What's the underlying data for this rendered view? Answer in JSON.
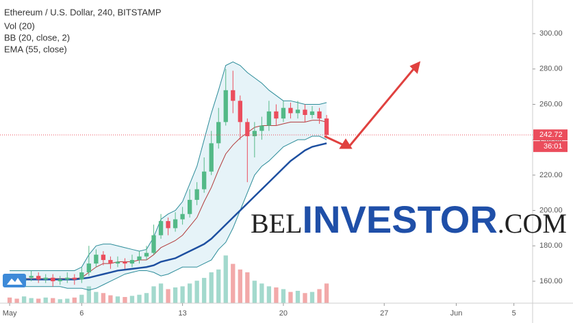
{
  "chart_data": {
    "type": "candlestick",
    "title": "Ethereum / U.S. Dollar, 240, BITSTAMP",
    "indicators": [
      "Vol (20)",
      "BB (20, close, 2)",
      "EMA (55, close)"
    ],
    "x": [
      1,
      1.5,
      2,
      2.5,
      3,
      3.5,
      4,
      4.5,
      5,
      5.5,
      6,
      6.5,
      7,
      7.5,
      8,
      8.5,
      9,
      9.5,
      10,
      10.5,
      11,
      11.5,
      12,
      12.5,
      13,
      13.5,
      14,
      14.5,
      15,
      15.5,
      16,
      16.5,
      17,
      17.5,
      18,
      18.5,
      19,
      19.5,
      20,
      20.5,
      21,
      21.5,
      22,
      22.5,
      23
    ],
    "open": [
      162,
      161,
      160,
      162,
      163,
      161,
      162,
      160,
      161,
      162,
      161,
      165,
      170,
      175,
      172,
      170,
      171,
      170,
      172,
      174,
      176,
      186,
      194,
      190,
      195,
      198,
      206,
      212,
      222,
      238,
      250,
      268,
      262,
      250,
      242,
      245,
      248,
      256,
      252,
      258,
      255,
      257,
      254,
      256,
      252
    ],
    "high": [
      164,
      163,
      164,
      166,
      165,
      164,
      164,
      163,
      165,
      164,
      168,
      180,
      178,
      177,
      174,
      174,
      173,
      175,
      177,
      180,
      192,
      198,
      196,
      199,
      202,
      212,
      216,
      230,
      245,
      258,
      280,
      279,
      265,
      252,
      250,
      253,
      262,
      260,
      262,
      261,
      262,
      260,
      259,
      258,
      254
    ],
    "low": [
      159,
      158,
      158,
      160,
      159,
      159,
      157,
      158,
      159,
      158,
      159,
      163,
      168,
      169,
      167,
      168,
      167,
      168,
      170,
      172,
      175,
      184,
      186,
      188,
      192,
      196,
      203,
      210,
      220,
      235,
      248,
      255,
      240,
      216,
      230,
      240,
      245,
      248,
      250,
      252,
      252,
      250,
      252,
      249,
      241
    ],
    "close": [
      161,
      160,
      162,
      163,
      161,
      162,
      160,
      161,
      162,
      161,
      165,
      170,
      175,
      172,
      170,
      171,
      170,
      172,
      174,
      176,
      186,
      194,
      190,
      195,
      198,
      206,
      212,
      222,
      238,
      250,
      268,
      262,
      250,
      242,
      245,
      248,
      256,
      252,
      258,
      255,
      257,
      254,
      256,
      252,
      242.72
    ],
    "volume": [
      10,
      8,
      12,
      9,
      8,
      10,
      9,
      7,
      8,
      10,
      15,
      30,
      20,
      18,
      14,
      12,
      11,
      13,
      15,
      18,
      30,
      35,
      25,
      28,
      30,
      35,
      40,
      45,
      55,
      60,
      85,
      70,
      60,
      55,
      40,
      35,
      30,
      28,
      25,
      20,
      22,
      18,
      20,
      25,
      35
    ],
    "bb_upper": [
      166,
      166,
      166,
      166,
      166,
      166,
      166,
      166,
      166,
      166,
      168,
      175,
      180,
      181,
      181,
      180,
      179,
      178,
      177,
      178,
      185,
      195,
      198,
      200,
      205,
      215,
      225,
      240,
      255,
      268,
      282,
      284,
      282,
      278,
      275,
      272,
      268,
      265,
      262,
      262,
      261,
      260,
      260,
      260,
      261
    ],
    "bb_middle": [
      161.5,
      161.5,
      161.5,
      161.5,
      161.5,
      161.5,
      161.5,
      161.5,
      161.5,
      161.5,
      162,
      165,
      168,
      170,
      170,
      171,
      171,
      171,
      172,
      172,
      175,
      179,
      181,
      183,
      186,
      191,
      196,
      205,
      213,
      223,
      232,
      237,
      241,
      244,
      247,
      248,
      248,
      248,
      249,
      250,
      250,
      250,
      251,
      251,
      250
    ],
    "bb_lower": [
      157,
      157,
      157,
      157,
      157,
      157,
      157,
      157,
      156,
      156,
      156,
      155,
      156,
      158,
      160,
      162,
      164,
      165,
      166,
      166,
      165,
      163,
      164,
      166,
      168,
      168,
      168,
      170,
      172,
      178,
      182,
      190,
      200,
      210,
      220,
      225,
      228,
      232,
      236,
      238,
      240,
      240,
      242,
      242,
      240
    ],
    "ema": [
      161,
      161,
      161,
      161,
      161,
      161,
      161,
      161,
      161,
      161,
      161.5,
      162,
      163,
      164,
      165,
      166,
      166.5,
      167,
      167.5,
      168,
      169,
      171,
      172,
      173,
      175,
      177,
      179,
      181,
      184,
      188,
      192,
      196,
      200,
      204,
      208,
      212,
      216,
      220,
      224,
      228,
      231,
      234,
      236,
      237,
      238
    ],
    "up_color": "#53b987",
    "down_color": "#eb4d5c",
    "up_volume_color": "#a3d9cd",
    "down_volume_color": "#f2a9a9",
    "bb_color": "#2c8c99",
    "bb_middle_color": "#b23a3a",
    "bb_fill": "#e6f3f8",
    "ema_color": "#1d4fa0",
    "last_price": 242.72,
    "countdown": "36:01",
    "xlim": [
      0.33,
      37.3
    ],
    "xticks": [
      {
        "value": 1,
        "label": "May"
      },
      6,
      13,
      20,
      27,
      {
        "value": 32,
        "label": "Jun"
      },
      {
        "value": 36,
        "label": "5"
      }
    ],
    "ylim": [
      147.6,
      319
    ],
    "yticks": [
      {
        "value": 160,
        "label": "160.00"
      },
      {
        "value": 180,
        "label": "180.00"
      },
      {
        "value": 200,
        "label": "200.00"
      },
      {
        "value": 220,
        "label": "220.00"
      },
      {
        "value": 240,
        "label": "240.00"
      },
      {
        "value": 260,
        "label": "260.00"
      },
      {
        "value": 280,
        "label": "280.00"
      },
      {
        "value": 300,
        "label": "300.00"
      }
    ],
    "grid": false
  },
  "watermark": {
    "prefix": "BEL",
    "name": "INVESTOR",
    "suffix": ".COM"
  }
}
